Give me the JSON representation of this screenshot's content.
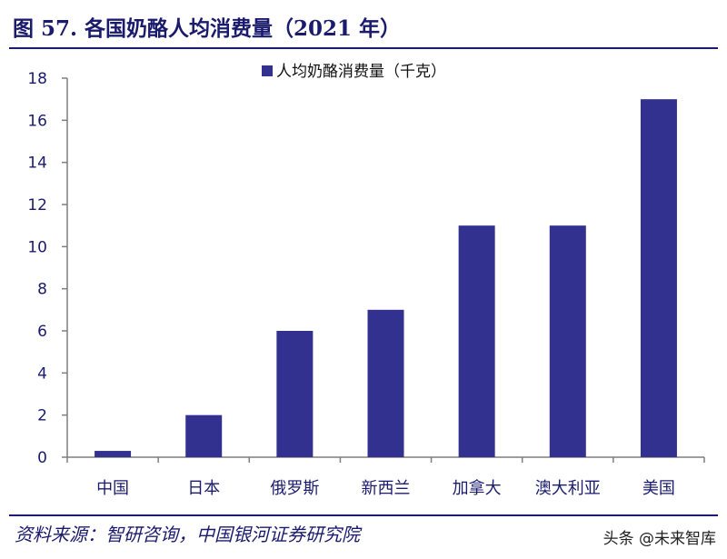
{
  "figure": {
    "title": "图 57. 各国奶酪人均消费量（2021 年）",
    "source": "资料来源：智研咨询，中国银河证券研究院",
    "watermark": "头条 @未来智库"
  },
  "colors": {
    "bar": "#33318f",
    "axis": "#7f7f7f",
    "text": "#1b1b6e"
  },
  "chart_data": {
    "type": "bar",
    "categories": [
      "中国",
      "日本",
      "俄罗斯",
      "新西兰",
      "加拿大",
      "澳大利亚",
      "美国"
    ],
    "series": [
      {
        "name": "人均奶酪消费量（千克）",
        "values": [
          0.3,
          2,
          6,
          7,
          11,
          11,
          17
        ]
      }
    ],
    "ylim": [
      0,
      18
    ],
    "yticks": [
      0,
      2,
      4,
      6,
      8,
      10,
      12,
      14,
      16,
      18
    ],
    "legend": "top-center",
    "grid": false
  }
}
